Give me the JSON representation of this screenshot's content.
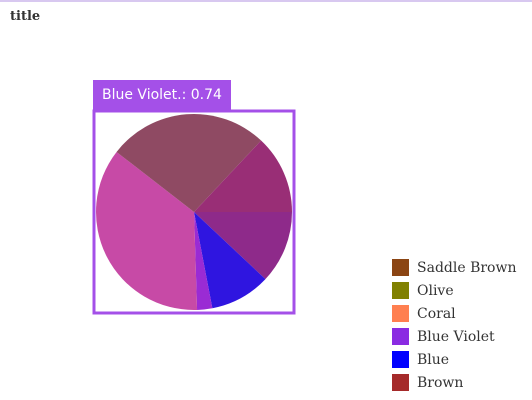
{
  "chart_data": {
    "type": "pie",
    "title": "title",
    "categories": [
      "Saddle Brown",
      "Olive",
      "Coral",
      "Blue Violet",
      "Blue",
      "Brown"
    ],
    "colors": [
      "#8b4513",
      "#808000",
      "#ff7f50",
      "#8a2be2",
      "#0000ff",
      "#a52a2a"
    ],
    "slices": [
      {
        "color": "#8e2a8a",
        "value": 12.0
      },
      {
        "color": "#2f15e0",
        "value": 10.0
      },
      {
        "color": "#9a2bd4",
        "value": 2.5
      },
      {
        "color": "#c74aa6",
        "value": 36.0
      },
      {
        "color": "#8f4a63",
        "value": 26.5
      },
      {
        "color": "#992e76",
        "value": 13.0
      }
    ],
    "legend_position": "bottom-right",
    "highlight": {
      "slice_index": 2,
      "text": "Blue Violet.: 0.74",
      "color": "#a450e8"
    }
  }
}
